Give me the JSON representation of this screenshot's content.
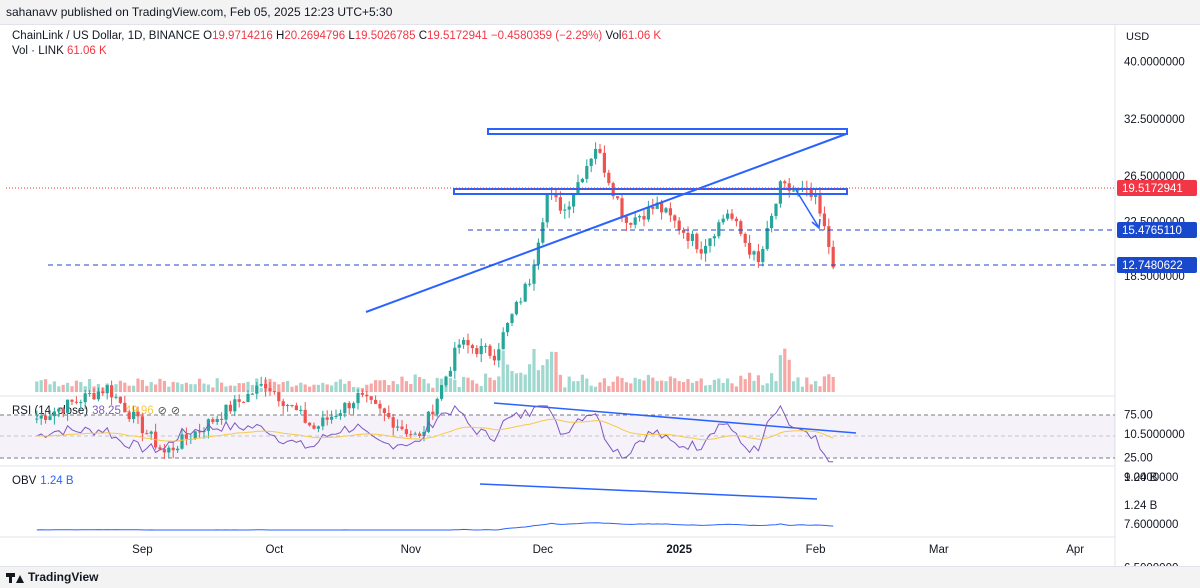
{
  "header": {
    "published": "sahanavv published on TradingView.com, Feb 05, 2025 12:23 UTC+5:30"
  },
  "legend": {
    "symbol": "ChainLink / US Dollar, 1D, BINANCE",
    "o_label": "O",
    "o_value": "19.9714216",
    "h_label": "H",
    "h_value": "20.2694796",
    "l_label": "L",
    "l_value": "19.5026785",
    "c_label": "C",
    "c_value": "19.5172941",
    "change": "−0.4580359 (−2.29%)",
    "vol_label": "Vol",
    "vol_value": "61.06 K",
    "vol_line_label": "Vol · LINK",
    "vol_line_value": "61.06 K"
  },
  "rsi_legend": {
    "label": "RSI (14, close)",
    "rsi": "38.25",
    "ma": "49.96",
    "icons": [
      "eye-slash-icon",
      "eye-slash-icon"
    ]
  },
  "obv_legend": {
    "label": "OBV",
    "value": "1.24 B"
  },
  "footer": {
    "brand": "TradingView"
  },
  "colors": {
    "up": "#26a69a",
    "down": "#ef5350",
    "vol_up": "#9fd8cf",
    "vol_down": "#f7a7a6",
    "annotation": "#2962ff",
    "rsi": "#7e57c2",
    "rsi_ma": "#f7c948",
    "obv": "#2962ff",
    "last_price": "#f23645",
    "level": "#1848cc"
  },
  "chart_data": {
    "type": "candlestick",
    "currency": "USD",
    "scale": "log",
    "price_axis_ticks": [
      "40.0000000",
      "32.5000000",
      "26.5000000",
      "22.5000000",
      "18.5000000",
      "10.5000000",
      "9.0000000",
      "7.6000000",
      "6.5000000"
    ],
    "last_price": "19.5172941",
    "level_labels": [
      "15.4765110",
      "12.7480622"
    ],
    "levels": [
      15.476511,
      12.7480622
    ],
    "time_axis_ticks": [
      "Sep",
      "Oct",
      "Nov",
      "Dec",
      "2025",
      "Feb",
      "Mar",
      "Apr"
    ],
    "rsi_axis_ticks": [
      "75.00",
      "25.00"
    ],
    "obv_axis_ticks": [
      "1.24 B",
      "1.24 B"
    ],
    "range_channel": {
      "top": 26.5,
      "bottom": 19.2
    },
    "anchors": [
      {
        "date": "2024-08-08",
        "close": 11.1
      },
      {
        "date": "2024-08-24",
        "close": 12.4
      },
      {
        "date": "2024-09-06",
        "close": 9.8
      },
      {
        "date": "2024-09-15",
        "close": 10.8
      },
      {
        "date": "2024-09-29",
        "close": 12.6
      },
      {
        "date": "2024-10-10",
        "close": 10.7
      },
      {
        "date": "2024-10-20",
        "close": 12.0
      },
      {
        "date": "2024-11-03",
        "close": 10.3
      },
      {
        "date": "2024-11-12",
        "close": 14.5
      },
      {
        "date": "2024-11-20",
        "close": 14.0
      },
      {
        "date": "2024-11-28",
        "close": 18.3
      },
      {
        "date": "2024-12-02",
        "close": 24.8
      },
      {
        "date": "2024-12-06",
        "close": 23.5
      },
      {
        "date": "2024-12-10",
        "close": 26.8
      },
      {
        "date": "2024-12-13",
        "close": 29.5
      },
      {
        "date": "2024-12-20",
        "close": 22.5
      },
      {
        "date": "2024-12-27",
        "close": 23.8
      },
      {
        "date": "2025-01-06",
        "close": 20.5
      },
      {
        "date": "2025-01-12",
        "close": 23.3
      },
      {
        "date": "2025-01-19",
        "close": 19.3
      },
      {
        "date": "2025-01-24",
        "close": 25.4
      },
      {
        "date": "2025-01-29",
        "close": 25.0
      },
      {
        "date": "2025-02-01",
        "close": 24.3
      },
      {
        "date": "2025-02-05",
        "close": 19.5
      }
    ]
  }
}
